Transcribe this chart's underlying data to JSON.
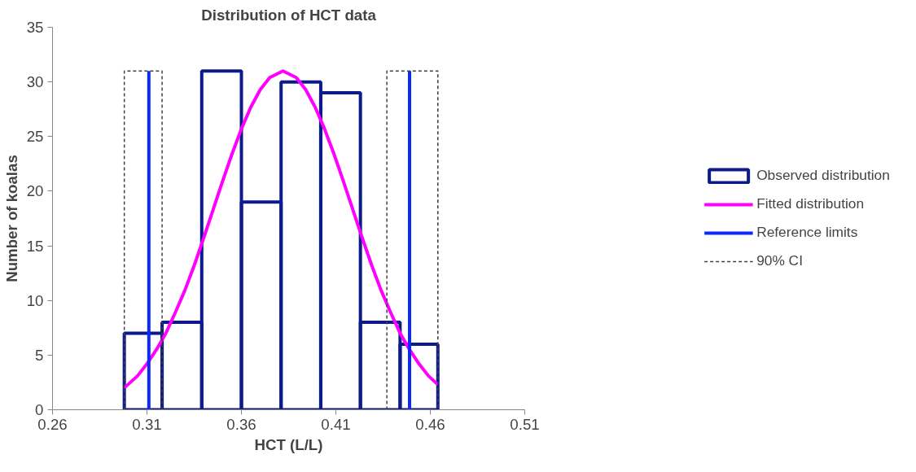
{
  "chart_data": {
    "type": "histogram",
    "title": "Distribution of HCT data",
    "xlabel": "HCT (L/L)",
    "ylabel": "Number of koalas",
    "xlim": [
      0.26,
      0.51
    ],
    "ylim": [
      0,
      35
    ],
    "xticks": [
      0.26,
      0.31,
      0.36,
      0.41,
      0.46,
      0.51
    ],
    "yticks": [
      0,
      5,
      10,
      15,
      20,
      25,
      30,
      35
    ],
    "grid": false,
    "legend": "right",
    "series": [
      {
        "name": "Observed distribution",
        "color": "#0d1a8c",
        "bins": [
          0.298,
          0.318,
          0.339,
          0.36,
          0.381,
          0.402,
          0.423,
          0.444,
          0.464
        ],
        "values": [
          7,
          8,
          31,
          19,
          30,
          29,
          8,
          6
        ]
      },
      {
        "name": "Fitted distribution",
        "type": "line",
        "color": "#ff00ff",
        "x": [
          0.298,
          0.305,
          0.31,
          0.315,
          0.32,
          0.325,
          0.33,
          0.335,
          0.34,
          0.345,
          0.35,
          0.355,
          0.36,
          0.365,
          0.37,
          0.375,
          0.382,
          0.389,
          0.394,
          0.399,
          0.404,
          0.409,
          0.414,
          0.419,
          0.424,
          0.429,
          0.434,
          0.439,
          0.444,
          0.449,
          0.454,
          0.459,
          0.464
        ],
        "values": [
          2.0,
          3.1,
          4.2,
          5.5,
          7.0,
          8.9,
          10.9,
          13.2,
          15.7,
          18.3,
          20.9,
          23.4,
          25.7,
          27.7,
          29.3,
          30.4,
          31,
          30.4,
          29.3,
          27.7,
          25.7,
          23.4,
          20.9,
          18.3,
          15.7,
          13.2,
          10.9,
          8.9,
          7.0,
          5.5,
          4.2,
          3.1,
          2.3
        ]
      },
      {
        "name": "Reference limits",
        "type": "line",
        "color": "#0a28ff",
        "x": [
          0.311,
          0.311,
          0.38,
          0.449,
          0.449
        ],
        "values": [
          0,
          31,
          null,
          0,
          31
        ]
      },
      {
        "name": "90% CI",
        "type": "line",
        "line_style": "dashed",
        "color": "#404040",
        "x": [
          0.298,
          0.298,
          0.318,
          0.318,
          0.38,
          0.437,
          0.437,
          0.464,
          0.464
        ],
        "values": [
          0,
          31,
          31,
          0,
          null,
          0,
          31,
          31,
          0
        ]
      }
    ]
  }
}
